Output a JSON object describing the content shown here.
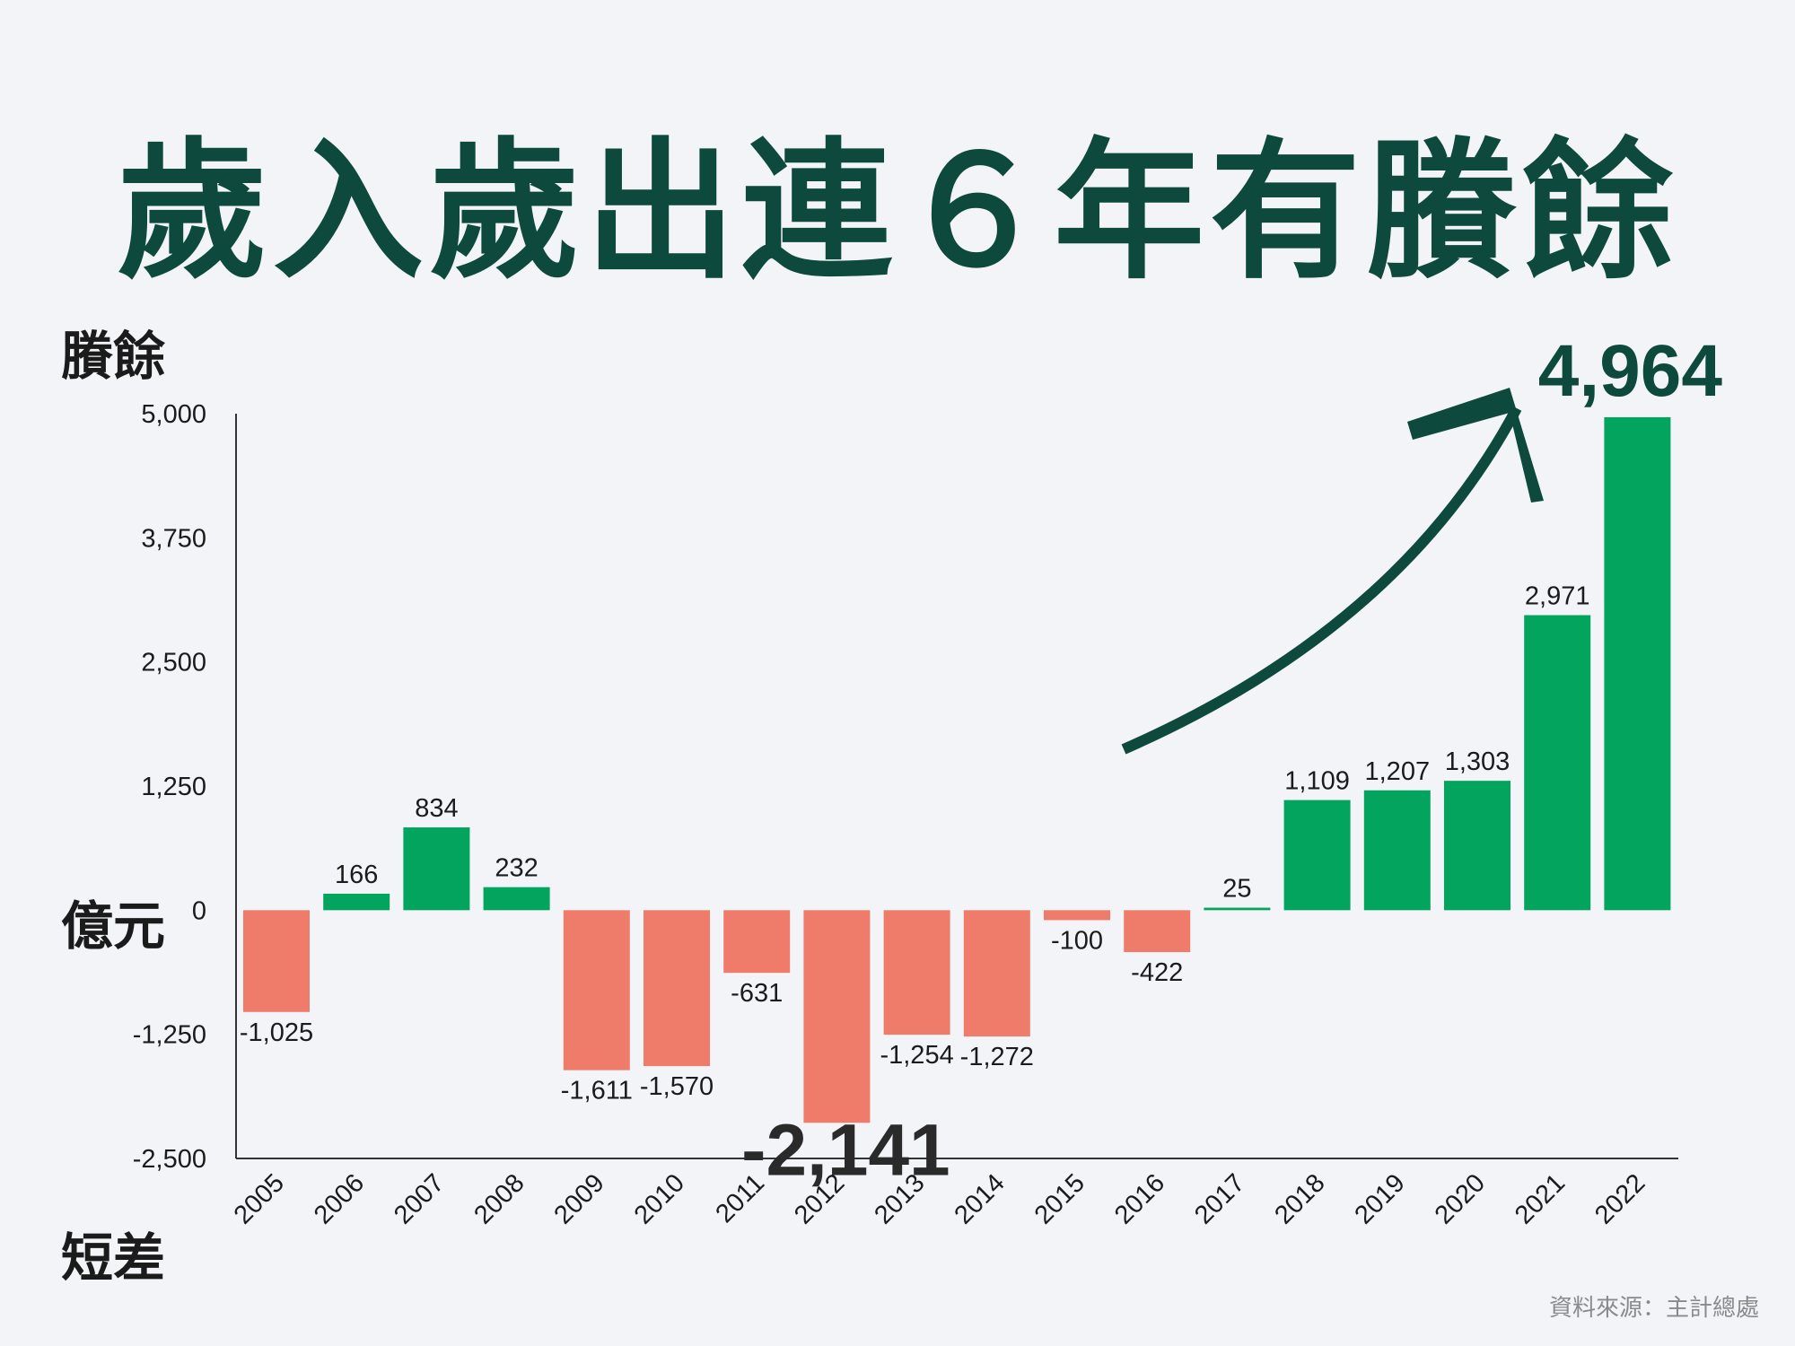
{
  "title": "歲入歲出連６年有賸餘",
  "labels": {
    "surplus": "賸餘",
    "unit": "億元",
    "deficit": "短差"
  },
  "source": "資料來源：主計總處",
  "colors": {
    "positive": "#03a45e",
    "negative": "#ef7b6a",
    "title": "#0d4a3d",
    "arrow": "#0d4a3d"
  },
  "chart_data": {
    "type": "bar",
    "categories": [
      "2005",
      "2006",
      "2007",
      "2008",
      "2009",
      "2010",
      "2011",
      "2012",
      "2013",
      "2014",
      "2015",
      "2016",
      "2017",
      "2018",
      "2019",
      "2020",
      "2021",
      "2022"
    ],
    "values": [
      -1025,
      166,
      834,
      232,
      -1611,
      -1570,
      -631,
      -2141,
      -1254,
      -1272,
      -100,
      -422,
      25,
      1109,
      1207,
      1303,
      2971,
      4964
    ],
    "value_labels": [
      "-1,025",
      "166",
      "834",
      "232",
      "-1,611",
      "-1,570",
      "-631",
      "-2,141",
      "-1,254",
      "-1,272",
      "-100",
      "-422",
      "25",
      "1,109",
      "1,207",
      "1,303",
      "2,971",
      "4,964"
    ],
    "yticks": [
      5000,
      3750,
      2500,
      1250,
      0,
      -1250,
      -2500
    ],
    "ytick_labels": [
      "5,000",
      "3,750",
      "2,500",
      "1,250",
      "0",
      "-1,250",
      "-2,500"
    ],
    "ylim": [
      -2500,
      5000
    ],
    "highlighted": [
      "2012",
      "2022"
    ],
    "grid": false
  }
}
